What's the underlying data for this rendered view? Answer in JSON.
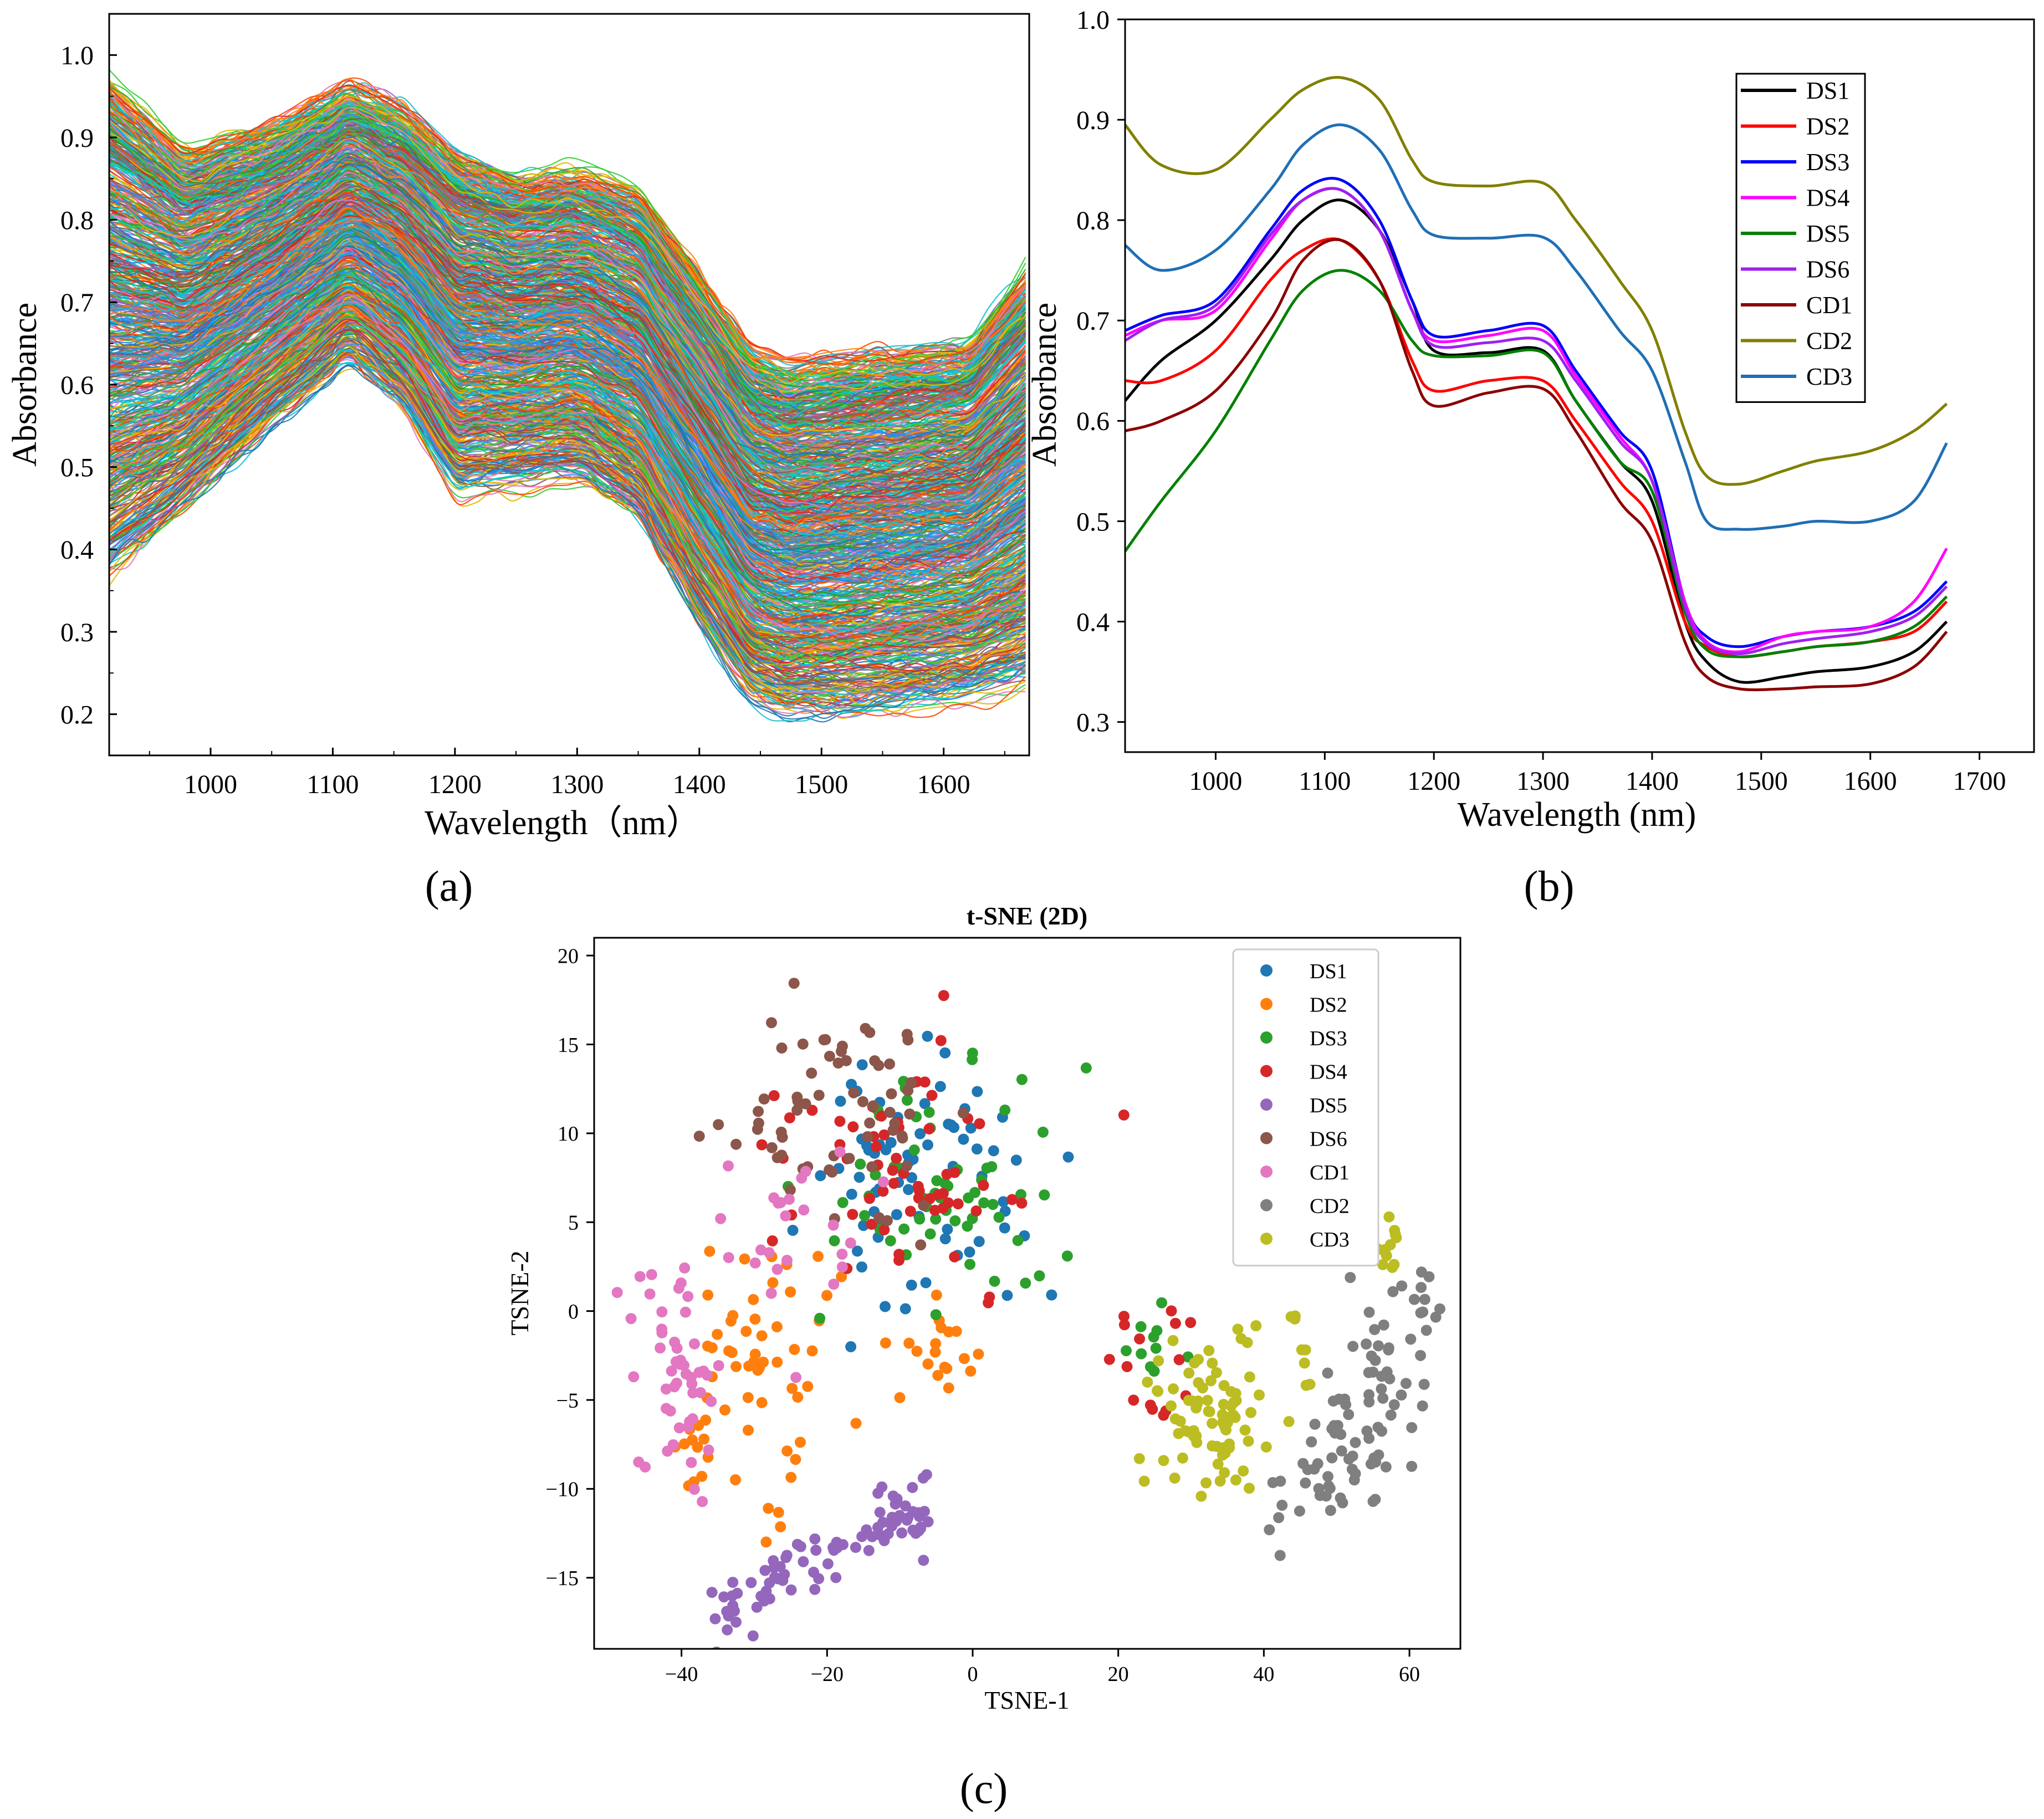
{
  "chart_data": [
    {
      "id": "a",
      "type": "line",
      "panel_label": "(a)",
      "xlabel": "Wavelength（nm）",
      "ylabel": "Absorbance",
      "xlim": [
        917,
        1670
      ],
      "ylim": [
        0.15,
        1.05
      ],
      "xticks": [
        "1000",
        "1100",
        "1200",
        "1300",
        "1400",
        "1500",
        "1600"
      ],
      "yticks": [
        "0.2",
        "0.3",
        "0.4",
        "0.5",
        "0.6",
        "0.7",
        "0.8",
        "0.9",
        "1.0"
      ],
      "series_count": 800,
      "envelope": {
        "x": [
          917,
          980,
          1050,
          1115,
          1160,
          1200,
          1250,
          1300,
          1350,
          1400,
          1440,
          1470,
          1520,
          1570,
          1620,
          1670
        ],
        "top": [
          0.97,
          0.88,
          0.91,
          0.96,
          0.93,
          0.88,
          0.85,
          0.86,
          0.83,
          0.73,
          0.64,
          0.62,
          0.63,
          0.64,
          0.65,
          0.74
        ],
        "bottom": [
          0.37,
          0.45,
          0.55,
          0.63,
          0.57,
          0.47,
          0.48,
          0.49,
          0.44,
          0.31,
          0.22,
          0.2,
          0.2,
          0.21,
          0.22,
          0.24
        ]
      },
      "colors": [
        "#1f77b4",
        "#ff7f0e",
        "#2ca02c",
        "#d62728",
        "#9467bd",
        "#17becf",
        "#e6b800",
        "#8c564b",
        "#e377c2",
        "#7f7f7f",
        "#1e90ff",
        "#ff4500",
        "#32cd32",
        "#00ced1"
      ]
    },
    {
      "id": "b",
      "type": "line",
      "panel_label": "(b)",
      "xlabel": "Wavelength (nm)",
      "ylabel": "Absorbance",
      "xlim": [
        917,
        1750
      ],
      "ylim": [
        0.27,
        1.0
      ],
      "xticks": [
        "1000",
        "1100",
        "1200",
        "1300",
        "1400",
        "1500",
        "1600",
        "1700"
      ],
      "yticks": [
        "0.3",
        "0.4",
        "0.5",
        "0.6",
        "0.7",
        "0.8",
        "0.9",
        "1.0"
      ],
      "legend_position": "top-right",
      "x": [
        917,
        950,
        1000,
        1050,
        1080,
        1115,
        1150,
        1180,
        1200,
        1250,
        1300,
        1330,
        1370,
        1400,
        1430,
        1450,
        1480,
        1520,
        1550,
        1600,
        1640,
        1670
      ],
      "series": [
        {
          "name": "DS1",
          "color": "#000000",
          "values": [
            0.62,
            0.66,
            0.7,
            0.76,
            0.8,
            0.82,
            0.79,
            0.72,
            0.67,
            0.668,
            0.67,
            0.62,
            0.56,
            0.52,
            0.4,
            0.36,
            0.34,
            0.345,
            0.35,
            0.355,
            0.37,
            0.4
          ]
        },
        {
          "name": "DS2",
          "color": "#ff0000",
          "values": [
            0.64,
            0.64,
            0.67,
            0.74,
            0.77,
            0.78,
            0.74,
            0.66,
            0.63,
            0.64,
            0.64,
            0.6,
            0.54,
            0.5,
            0.4,
            0.375,
            0.365,
            0.37,
            0.375,
            0.38,
            0.39,
            0.42
          ]
        },
        {
          "name": "DS3",
          "color": "#0000ff",
          "values": [
            0.69,
            0.705,
            0.72,
            0.79,
            0.83,
            0.84,
            0.8,
            0.72,
            0.685,
            0.69,
            0.695,
            0.65,
            0.59,
            0.55,
            0.42,
            0.385,
            0.375,
            0.385,
            0.39,
            0.395,
            0.41,
            0.44
          ]
        },
        {
          "name": "DS4",
          "color": "#ff00ff",
          "values": [
            0.685,
            0.7,
            0.71,
            0.78,
            0.82,
            0.83,
            0.79,
            0.71,
            0.68,
            0.685,
            0.69,
            0.645,
            0.585,
            0.54,
            0.42,
            0.38,
            0.37,
            0.385,
            0.39,
            0.395,
            0.42,
            0.473
          ]
        },
        {
          "name": "DS5",
          "color": "#008000",
          "values": [
            0.47,
            0.52,
            0.59,
            0.68,
            0.73,
            0.75,
            0.73,
            0.68,
            0.665,
            0.665,
            0.668,
            0.62,
            0.56,
            0.53,
            0.41,
            0.372,
            0.365,
            0.37,
            0.375,
            0.38,
            0.395,
            0.425
          ]
        },
        {
          "name": "DS6",
          "color": "#a020f0",
          "values": [
            0.68,
            0.7,
            0.715,
            0.785,
            0.82,
            0.83,
            0.79,
            0.71,
            0.675,
            0.678,
            0.68,
            0.64,
            0.58,
            0.54,
            0.415,
            0.378,
            0.368,
            0.378,
            0.383,
            0.39,
            0.405,
            0.435
          ]
        },
        {
          "name": "CD1",
          "color": "#8b0000",
          "values": [
            0.59,
            0.6,
            0.63,
            0.7,
            0.76,
            0.78,
            0.74,
            0.65,
            0.615,
            0.628,
            0.632,
            0.59,
            0.52,
            0.48,
            0.38,
            0.345,
            0.333,
            0.333,
            0.335,
            0.338,
            0.355,
            0.39
          ]
        },
        {
          "name": "CD2",
          "color": "#808000",
          "values": [
            0.895,
            0.855,
            0.85,
            0.9,
            0.93,
            0.942,
            0.92,
            0.86,
            0.838,
            0.834,
            0.837,
            0.8,
            0.74,
            0.69,
            0.59,
            0.545,
            0.537,
            0.55,
            0.56,
            0.57,
            0.59,
            0.617
          ]
        },
        {
          "name": "CD3",
          "color": "#1f6fb4",
          "values": [
            0.775,
            0.75,
            0.77,
            0.83,
            0.875,
            0.895,
            0.87,
            0.81,
            0.785,
            0.782,
            0.783,
            0.75,
            0.69,
            0.65,
            0.56,
            0.5,
            0.492,
            0.495,
            0.5,
            0.5,
            0.52,
            0.578
          ]
        }
      ]
    },
    {
      "id": "c",
      "type": "scatter",
      "panel_label": "(c)",
      "title": "t-SNE (2D)",
      "xlabel": "TSNE-1",
      "ylabel": "TSNE-2",
      "xlim": [
        -52,
        67
      ],
      "ylim": [
        -19,
        21
      ],
      "xticks": [
        "−40",
        "−20",
        "0",
        "20",
        "40",
        "60"
      ],
      "yticks": [
        "−15",
        "−10",
        "−5",
        "0",
        "5",
        "10",
        "15",
        "20"
      ],
      "legend_position": "top-right",
      "series": [
        {
          "name": "DS1",
          "color": "#1f77b4",
          "clusters": [
            {
              "cx": -8,
              "cy": 8,
              "sx": 14,
              "sy": 7,
              "n": 70
            }
          ]
        },
        {
          "name": "DS2",
          "color": "#ff7f0e",
          "clusters": [
            {
              "cx": -28,
              "cy": -2,
              "sx": 9,
              "sy": 5,
              "n": 45
            },
            {
              "cx": -5,
              "cy": -2,
              "sx": 7,
              "sy": 3,
              "n": 20
            },
            {
              "cx": -38,
              "cy": -8,
              "sx": 4,
              "sy": 2.5,
              "n": 14
            },
            {
              "cx": -28,
              "cy": -12,
              "sx": 2,
              "sy": 1.5,
              "n": 4
            }
          ]
        },
        {
          "name": "DS3",
          "color": "#2ca02c",
          "clusters": [
            {
              "cx": -5,
              "cy": 7,
              "sx": 14,
              "sy": 6,
              "n": 65
            },
            {
              "cx": 25,
              "cy": -2,
              "sx": 5,
              "sy": 2,
              "n": 10
            }
          ]
        },
        {
          "name": "DS4",
          "color": "#d62728",
          "clusters": [
            {
              "cx": -10,
              "cy": 7,
              "sx": 16,
              "sy": 7,
              "n": 60
            },
            {
              "cx": 24,
              "cy": -3,
              "sx": 5,
              "sy": 3,
              "n": 15
            }
          ]
        },
        {
          "name": "DS5",
          "color": "#9467bd",
          "clusters": [
            {
              "cx": -21,
              "cy": -14,
              "sx": 10,
              "sy": 2.2,
              "n": 85,
              "line": true
            }
          ]
        },
        {
          "name": "DS6",
          "color": "#8c564b",
          "clusters": [
            {
              "cx": -17,
              "cy": 11,
              "sx": 14,
              "sy": 6,
              "n": 65
            }
          ]
        },
        {
          "name": "CD1",
          "color": "#e377c2",
          "clusters": [
            {
              "cx": -40,
              "cy": -4,
              "sx": 6,
              "sy": 5,
              "n": 50
            },
            {
              "cx": -25,
              "cy": 5,
              "sx": 8,
              "sy": 5,
              "n": 25
            }
          ]
        },
        {
          "name": "CD2",
          "color": "#7f7f7f",
          "clusters": [
            {
              "cx": 53,
              "cy": -3,
              "sx": 7,
              "sy": 5,
              "n": 95,
              "arc": true
            }
          ]
        },
        {
          "name": "CD3",
          "color": "#bcbd22",
          "clusters": [
            {
              "cx": 33,
              "cy": -6,
              "sx": 8,
              "sy": 3.5,
              "n": 80
            },
            {
              "cx": 57,
              "cy": 3.5,
              "sx": 1.5,
              "sy": 2,
              "n": 12
            },
            {
              "cx": 45,
              "cy": -2,
              "sx": 2,
              "sy": 2,
              "n": 8
            }
          ]
        }
      ]
    }
  ]
}
